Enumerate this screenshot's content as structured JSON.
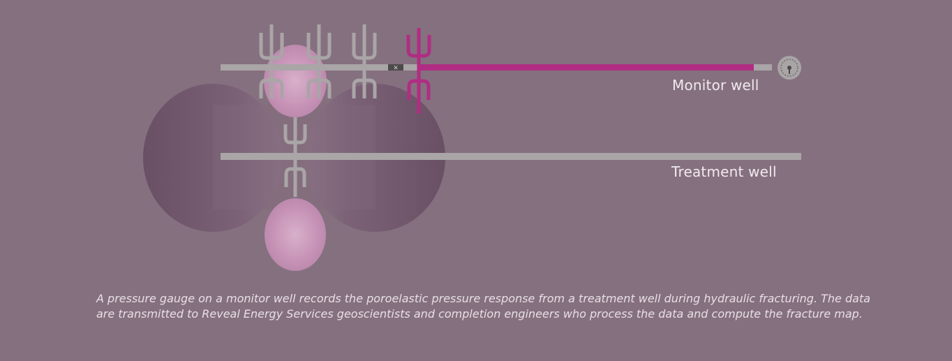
{
  "labels": {
    "monitor_well": "Monitor well",
    "treatment_well": "Treatment well"
  },
  "caption": "A pressure gauge on a monitor well records the poroelastic pressure response from a treatment well during hydraulic fracturing. The data are transmitted to Reveal Energy Services geoscientists and completion engineers who process the data and compute the fracture map.",
  "icons": {
    "gauge": "pressure-gauge-icon",
    "isolation_plug": "isolation-plug-icon",
    "fracture_stage": "fracture-stage-icon"
  },
  "colors": {
    "background": "#85707f",
    "pipe": "#a9a4a6",
    "active_stage": "#b22c84",
    "fracture_glow": "#e2b3d2",
    "stimulated_zone": "#6e5468",
    "label_text": "#f1eaef"
  }
}
